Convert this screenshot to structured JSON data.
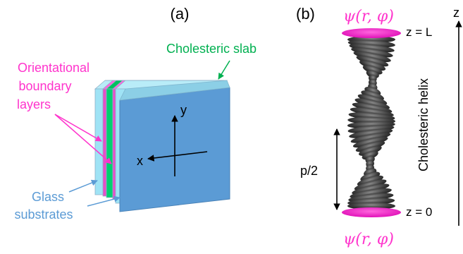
{
  "panel_a": {
    "label": "(a)",
    "cholesteric_slab": "Cholesteric slab",
    "boundary_layers": [
      "Orientational",
      "boundary",
      "layers"
    ],
    "glass": [
      "Glass",
      "substrates"
    ],
    "axis_y": "y",
    "axis_x": "x"
  },
  "panel_b": {
    "label": "(b)",
    "psi_top": "ψ(r, φ)",
    "psi_bottom": "ψ(r, φ)",
    "z_top": "z = L",
    "z_bottom": "z = 0",
    "z_axis": "z",
    "helix": "Cholesteric helix",
    "half_pitch": "p/2"
  },
  "colors": {
    "green": "#00b050",
    "magenta": "#ff33cc",
    "blue": "#5b9bd5",
    "glass": "#9fe3f5",
    "molecule": "#3a3a3a"
  }
}
